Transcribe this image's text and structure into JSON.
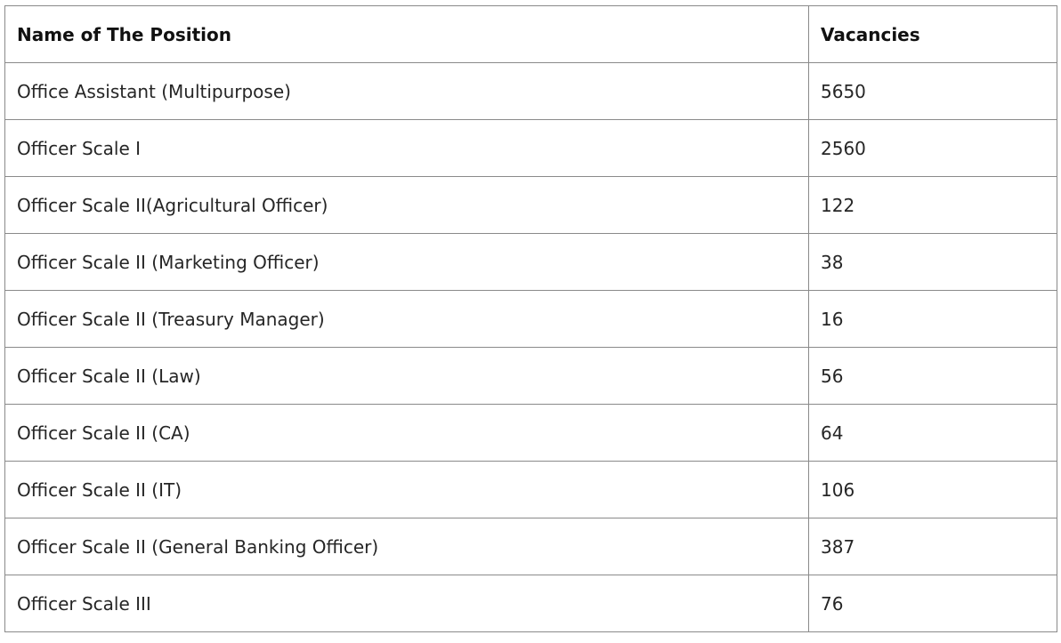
{
  "table": {
    "headers": [
      "Name of The Position",
      "Vacancies"
    ],
    "rows": [
      [
        "Office Assistant (Multipurpose)",
        "5650"
      ],
      [
        "Officer Scale I",
        "2560"
      ],
      [
        "Officer Scale II(Agricultural Officer)",
        "122"
      ],
      [
        "Officer Scale II (Marketing Officer)",
        "38"
      ],
      [
        "Officer Scale II (Treasury Manager)",
        "16"
      ],
      [
        "Officer Scale II (Law)",
        "56"
      ],
      [
        "Officer Scale II (CA)",
        "64"
      ],
      [
        "Officer Scale II (IT)",
        "106"
      ],
      [
        "Officer Scale II (General Banking Officer)",
        "387"
      ],
      [
        "Officer Scale III",
        "76"
      ]
    ]
  }
}
